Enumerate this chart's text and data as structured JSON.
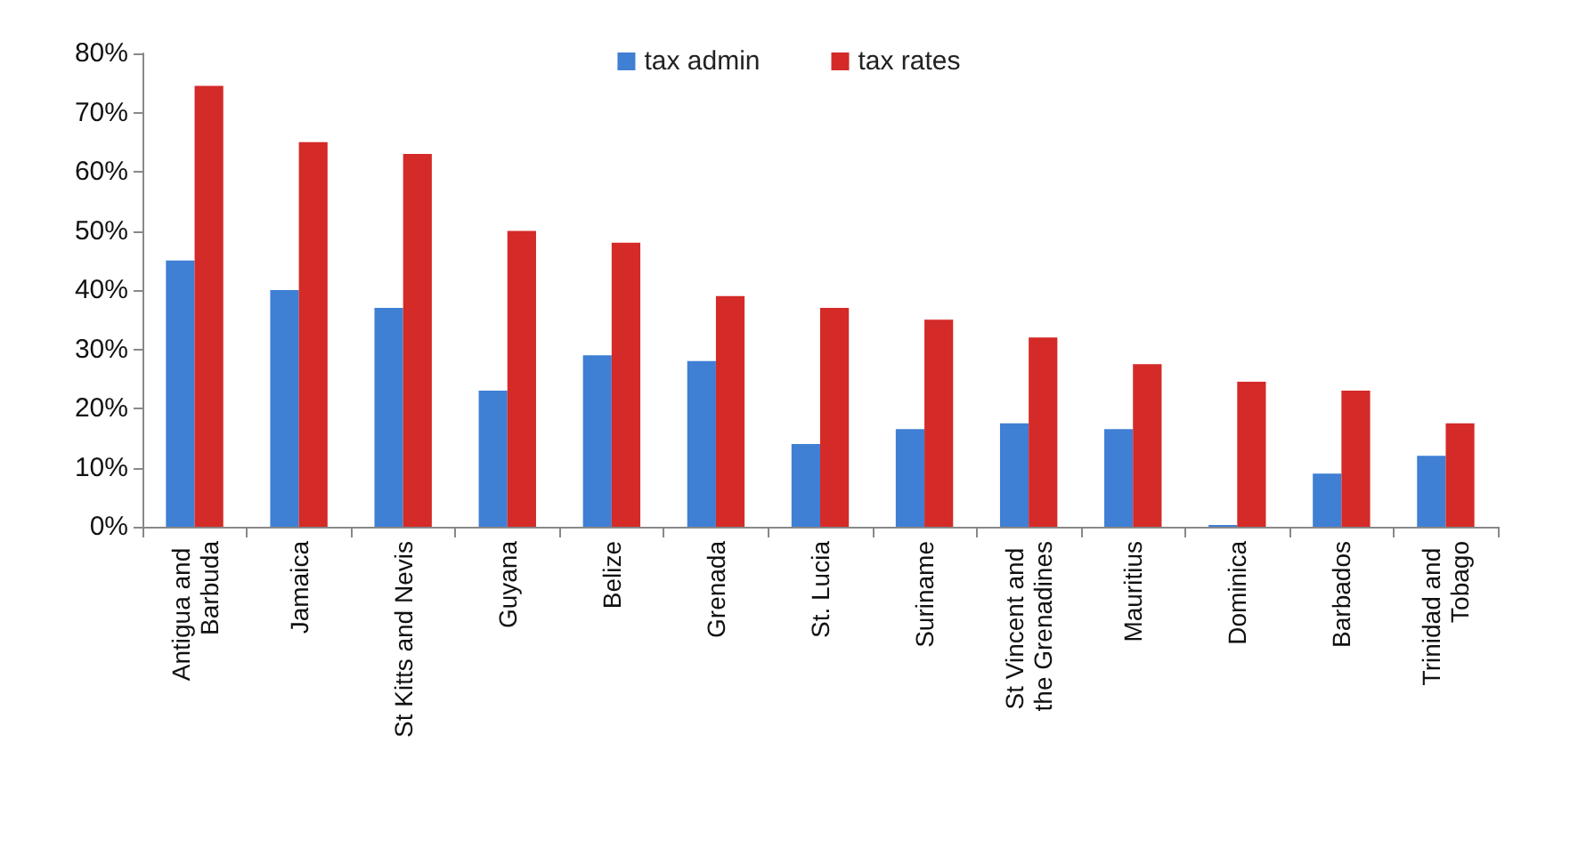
{
  "chart_data": {
    "type": "bar",
    "categories": [
      "Antigua and Barbuda",
      "Jamaica",
      "St Kitts and Nevis",
      "Guyana",
      "Belize",
      "Grenada",
      "St. Lucia",
      "Suriname",
      "St Vincent and the Grenadines",
      "Mauritius",
      "Dominica",
      "Barbados",
      "Trinidad and Tobago"
    ],
    "series": [
      {
        "name": "tax admin",
        "color": "#3f7fd4",
        "values": [
          45,
          40,
          37,
          23,
          29,
          28,
          14,
          16.5,
          17.5,
          16.5,
          0.3,
          9,
          12
        ]
      },
      {
        "name": "tax rates",
        "color": "#d42a28",
        "values": [
          74.5,
          65,
          63,
          50,
          48,
          39,
          37,
          35,
          32,
          27.5,
          24.5,
          23,
          17.5
        ]
      }
    ],
    "ylim": [
      0,
      80
    ],
    "yticks": [
      {
        "value": 0,
        "label": "0%"
      },
      {
        "value": 10,
        "label": "10%"
      },
      {
        "value": 20,
        "label": "20%"
      },
      {
        "value": 30,
        "label": "30%"
      },
      {
        "value": 40,
        "label": "40%"
      },
      {
        "value": 50,
        "label": "50%"
      },
      {
        "value": 60,
        "label": "60%"
      },
      {
        "value": 70,
        "label": "70%"
      },
      {
        "value": 80,
        "label": "80%"
      }
    ],
    "grid": false,
    "legend": "top"
  }
}
